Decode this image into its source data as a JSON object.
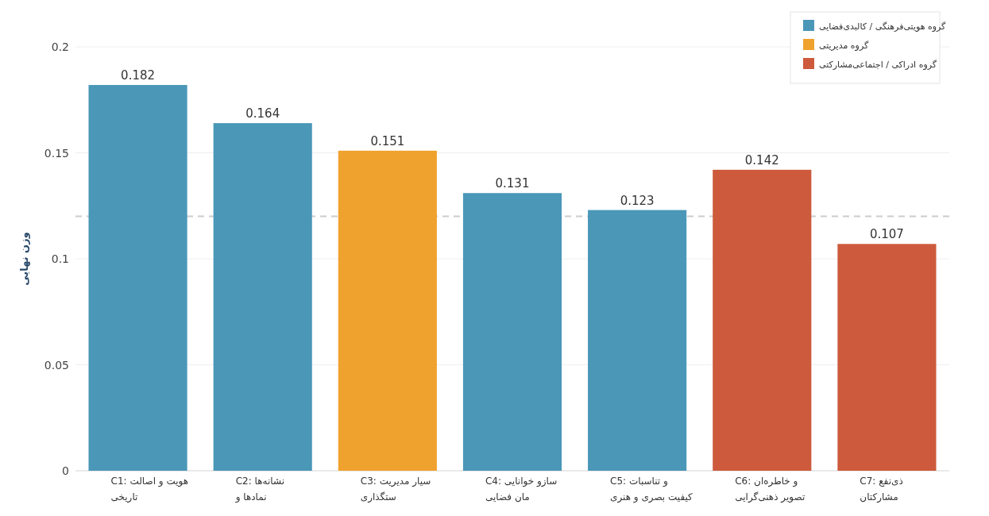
{
  "chart_data": {
    "type": "bar",
    "ylabel": "وزن نهایی",
    "categories": [
      "C1: هویت و اصالت\nتاریخی",
      "C2: نشانه‌ها\nنمادها و",
      "C3: سیار مدیریت\nستگذاری",
      "C4: سازو خوانایی\nمان فضایی",
      "C5: و تناسبات\nکیفیت بصری و هنری",
      "C6: و خاطره‌ان\nتصویر ذهنی‌گرایی",
      "C7: ذی‌نفع\nمشارکتان"
    ],
    "series": [
      {
        "name": "گروه هویتی‌فرهنگی / کالبدی‌فضایی",
        "color": "#4a97b8",
        "values": [
          0.182,
          0.164,
          null,
          0.131,
          0.123,
          null,
          null
        ]
      },
      {
        "name": "گروه مدیریتی",
        "color": "#f0a22e",
        "values": [
          null,
          null,
          0.151,
          null,
          null,
          null,
          null
        ]
      },
      {
        "name": "گروه ادراکی / اجتماعی‌مشارکتی",
        "color": "#cd5a3c",
        "values": [
          null,
          null,
          null,
          null,
          null,
          0.142,
          0.107
        ]
      }
    ],
    "ylim": [
      0,
      0.2
    ],
    "yticks": [
      0,
      0.05,
      0.1,
      0.15,
      0.2
    ],
    "grid": "y",
    "legend": "top right",
    "data_labels": true,
    "ref_lines": [
      {
        "axis": "y",
        "value": 0.12,
        "color": "#cccccc",
        "line_style": "dashed"
      }
    ]
  }
}
